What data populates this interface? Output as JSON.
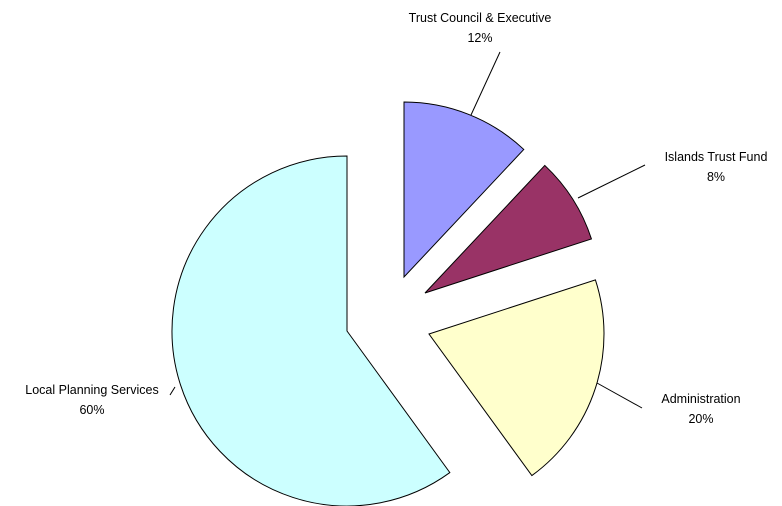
{
  "chart_data": {
    "type": "pie",
    "exploded": true,
    "start_angle_deg": 0,
    "direction": "clockwise",
    "legend": "none",
    "slices": [
      {
        "label": "Trust Council & Executive",
        "value": 12,
        "value_label": "12%",
        "color": "#9999FF"
      },
      {
        "label": "Islands Trust Fund",
        "value": 8,
        "value_label": "8%",
        "color": "#993366"
      },
      {
        "label": "Administration",
        "value": 20,
        "value_label": "20%",
        "color": "#FFFFCC"
      },
      {
        "label": "Local Planning Services",
        "value": 60,
        "value_label": "60%",
        "color": "#CCFFFF"
      }
    ]
  }
}
